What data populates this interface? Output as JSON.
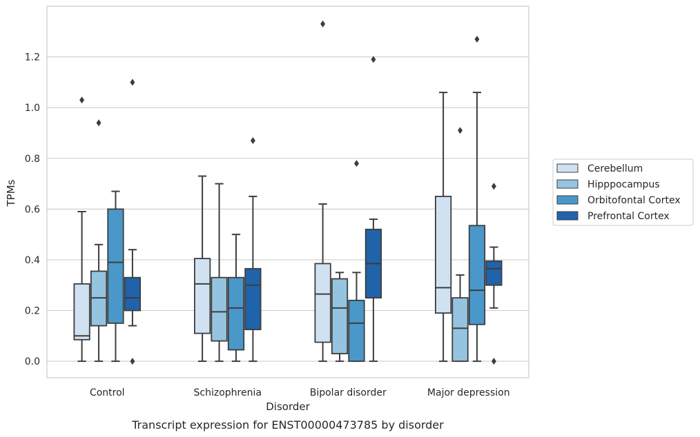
{
  "chart_data": {
    "type": "box",
    "title": "",
    "caption": "Transcript expression for ENST00000473785 by disorder",
    "xlabel": "Disorder",
    "ylabel": "TPMs",
    "ylim": [
      -0.065,
      1.4
    ],
    "yticks": [
      0.0,
      0.2,
      0.4,
      0.6,
      0.8,
      1.0,
      1.2
    ],
    "ytick_labels": [
      "0.0",
      "0.2",
      "0.4",
      "0.6",
      "0.8",
      "1.0",
      "1.2"
    ],
    "grid": "horizontal",
    "legend_position": "right",
    "categories": [
      "Control",
      "Schizophrenia",
      "Bipolar disorder",
      "Major depression"
    ],
    "series": [
      {
        "name": "Cerebellum",
        "color": "#d0e1f2",
        "boxes": [
          {
            "whisker_low": 0.0,
            "q1": 0.085,
            "median": 0.1,
            "q3": 0.305,
            "whisker_high": 0.59,
            "outliers": [
              1.03
            ]
          },
          {
            "whisker_low": 0.0,
            "q1": 0.11,
            "median": 0.305,
            "q3": 0.405,
            "whisker_high": 0.73,
            "outliers": []
          },
          {
            "whisker_low": 0.0,
            "q1": 0.075,
            "median": 0.265,
            "q3": 0.385,
            "whisker_high": 0.62,
            "outliers": [
              1.33
            ]
          },
          {
            "whisker_low": 0.0,
            "q1": 0.19,
            "median": 0.29,
            "q3": 0.65,
            "whisker_high": 1.06,
            "outliers": []
          }
        ]
      },
      {
        "name": "Hipppocampus",
        "color": "#94c4df",
        "boxes": [
          {
            "whisker_low": 0.0,
            "q1": 0.14,
            "median": 0.25,
            "q3": 0.355,
            "whisker_high": 0.46,
            "outliers": [
              0.94
            ]
          },
          {
            "whisker_low": 0.0,
            "q1": 0.08,
            "median": 0.195,
            "q3": 0.33,
            "whisker_high": 0.7,
            "outliers": []
          },
          {
            "whisker_low": 0.0,
            "q1": 0.03,
            "median": 0.21,
            "q3": 0.325,
            "whisker_high": 0.35,
            "outliers": []
          },
          {
            "whisker_low": 0.0,
            "q1": 0.0,
            "median": 0.13,
            "q3": 0.25,
            "whisker_high": 0.34,
            "outliers": [
              0.91
            ]
          }
        ]
      },
      {
        "name": "Orbitofontal Cortex",
        "color": "#4a98c9",
        "boxes": [
          {
            "whisker_low": 0.0,
            "q1": 0.15,
            "median": 0.39,
            "q3": 0.6,
            "whisker_high": 0.67,
            "outliers": []
          },
          {
            "whisker_low": 0.0,
            "q1": 0.045,
            "median": 0.21,
            "q3": 0.33,
            "whisker_high": 0.5,
            "outliers": []
          },
          {
            "whisker_low": 0.0,
            "q1": 0.0,
            "median": 0.15,
            "q3": 0.24,
            "whisker_high": 0.35,
            "outliers": [
              0.78
            ]
          },
          {
            "whisker_low": 0.0,
            "q1": 0.145,
            "median": 0.28,
            "q3": 0.535,
            "whisker_high": 1.06,
            "outliers": [
              1.27
            ]
          }
        ]
      },
      {
        "name": "Prefrontal Cortex",
        "color": "#2163aa",
        "boxes": [
          {
            "whisker_low": 0.14,
            "q1": 0.2,
            "median": 0.25,
            "q3": 0.33,
            "whisker_high": 0.44,
            "outliers": [
              1.1,
              0.0
            ]
          },
          {
            "whisker_low": 0.0,
            "q1": 0.125,
            "median": 0.3,
            "q3": 0.365,
            "whisker_high": 0.65,
            "outliers": [
              0.87
            ]
          },
          {
            "whisker_low": 0.0,
            "q1": 0.25,
            "median": 0.385,
            "q3": 0.52,
            "whisker_high": 0.56,
            "outliers": [
              1.19
            ]
          },
          {
            "whisker_low": 0.21,
            "q1": 0.3,
            "median": 0.365,
            "q3": 0.395,
            "whisker_high": 0.45,
            "outliers": [
              0.69,
              0.0
            ]
          }
        ]
      }
    ]
  }
}
